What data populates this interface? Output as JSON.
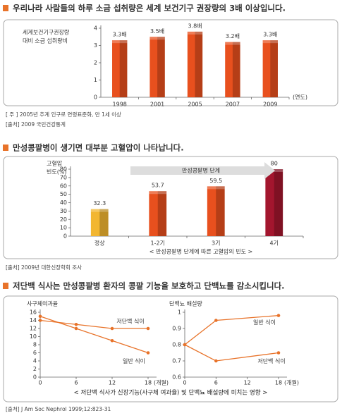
{
  "sections": [
    {
      "heading": "우리나라 사람들의 하루 소금 섭취량은 세계 보건기구 권장량의 3배 이상입니다.",
      "notes": [
        "[ 주 ] 2005년 추계 인구로 연령표준화, 만 1세 이상",
        "[출처] 2009 국민건강통계"
      ]
    },
    {
      "heading": "만성콩팥병이 생기면 대부분 고혈압이 나타납니다.",
      "notes": [
        "[출처] 2009년 대한신장학회 조사"
      ]
    },
    {
      "heading": "저단백 식사는 만성콩팥병 환자의 콩팥 기능을 보호하고 단백뇨를 감소시킵니다.",
      "caption": "< 저단백 식사가 신장기능(사구체 여과율) 및 단백뇨 배설량에 미치는 영향 >",
      "notes": [
        "[출처] J Am Soc Nephrol 1999;12:823-31"
      ]
    }
  ],
  "chart_data": [
    {
      "type": "bar",
      "ylabel": [
        "세계보건기구권장량",
        "대비 소금 섭취량비"
      ],
      "xunit": "(연도)",
      "categories": [
        "1998",
        "2001",
        "2005",
        "2007",
        "2009"
      ],
      "values": [
        3.3,
        3.5,
        3.8,
        3.2,
        3.3
      ],
      "value_labels": [
        "3.3배",
        "3.5배",
        "3.8배",
        "3.2배",
        "3.3배"
      ],
      "colors": [
        "#e8501e",
        "#e8501e",
        "#e8501e",
        "#e8501e",
        "#e8501e"
      ],
      "ylim": [
        0,
        4
      ],
      "yticks": [
        0,
        1,
        2,
        3,
        4
      ]
    },
    {
      "type": "bar",
      "ylabel": [
        "고혈압",
        "빈도(%)"
      ],
      "arrow_label": "만성콩팥병 단계",
      "caption": "< 만성콩팥병 단계에 따른 고혈압의 빈도 >",
      "categories": [
        "정상",
        "1-2기",
        "3기",
        "4기"
      ],
      "values": [
        32.3,
        53.7,
        59.5,
        80
      ],
      "colors": [
        "#f2b631",
        "#e8501e",
        "#e8501e",
        "#a3162e"
      ],
      "ylim": [
        0,
        80
      ],
      "yticks": [
        0,
        10,
        20,
        30,
        40,
        50,
        60,
        70,
        80
      ]
    },
    {
      "type": "line",
      "ylabel": [
        "사구체여과율"
      ],
      "xunit": "(개월)",
      "x": [
        0,
        6,
        12,
        18
      ],
      "xlim": [
        0,
        18
      ],
      "xticks": [
        0,
        6,
        12,
        18
      ],
      "ylim": [
        0,
        16
      ],
      "yticks": [
        0,
        2,
        4,
        6,
        8,
        10,
        12,
        14,
        16
      ],
      "series": [
        {
          "name": "저단백 식이",
          "color": "#e8732a",
          "values": [
            14,
            13,
            12,
            12
          ]
        },
        {
          "name": "일반 식이",
          "color": "#e8732a",
          "values": [
            15,
            12,
            9,
            6
          ]
        }
      ]
    },
    {
      "type": "line",
      "ylabel": [
        "단백뇨 배설량"
      ],
      "xunit": "(개월)",
      "x": [
        0,
        6,
        18
      ],
      "xlim": [
        0,
        18
      ],
      "xticks": [
        0,
        6,
        12,
        18
      ],
      "ylim": [
        0.6,
        1
      ],
      "yticks": [
        0.6,
        0.7,
        0.8,
        0.9,
        1
      ],
      "series": [
        {
          "name": "일반 식이",
          "color": "#e8732a",
          "values": [
            0.8,
            0.95,
            0.98
          ]
        },
        {
          "name": "저단백 식이",
          "color": "#e8732a",
          "values": [
            0.8,
            0.7,
            0.75
          ]
        }
      ]
    }
  ]
}
